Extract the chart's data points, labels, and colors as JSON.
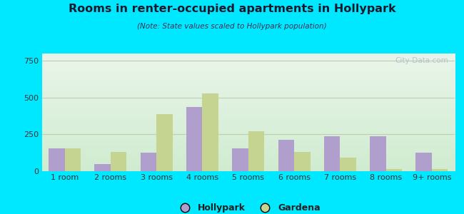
{
  "title": "Rooms in renter-occupied apartments in Hollypark",
  "subtitle": "(Note: State values scaled to Hollypark population)",
  "categories": [
    "1 room",
    "2 rooms",
    "3 rooms",
    "4 rooms",
    "5 rooms",
    "6 rooms",
    "7 rooms",
    "8 rooms",
    "9+ rooms"
  ],
  "hollypark": [
    155,
    50,
    125,
    435,
    155,
    215,
    240,
    240,
    125
  ],
  "gardena": [
    155,
    130,
    390,
    530,
    270,
    130,
    90,
    15,
    15
  ],
  "hollypark_color": "#b09fcc",
  "gardena_color": "#c5d490",
  "ylim": [
    0,
    800
  ],
  "yticks": [
    0,
    250,
    500,
    750
  ],
  "background_outer": "#00e8ff",
  "bg_top": "#eaf5ea",
  "bg_bottom": "#d0ecd0",
  "gridline_color": "#bccfb0",
  "bar_width": 0.35,
  "legend_hollypark": "Hollypark",
  "legend_gardena": "Gardena",
  "watermark": "City-Data.com",
  "title_color": "#1a1a2e",
  "subtitle_color": "#333355",
  "tick_color": "#333333"
}
